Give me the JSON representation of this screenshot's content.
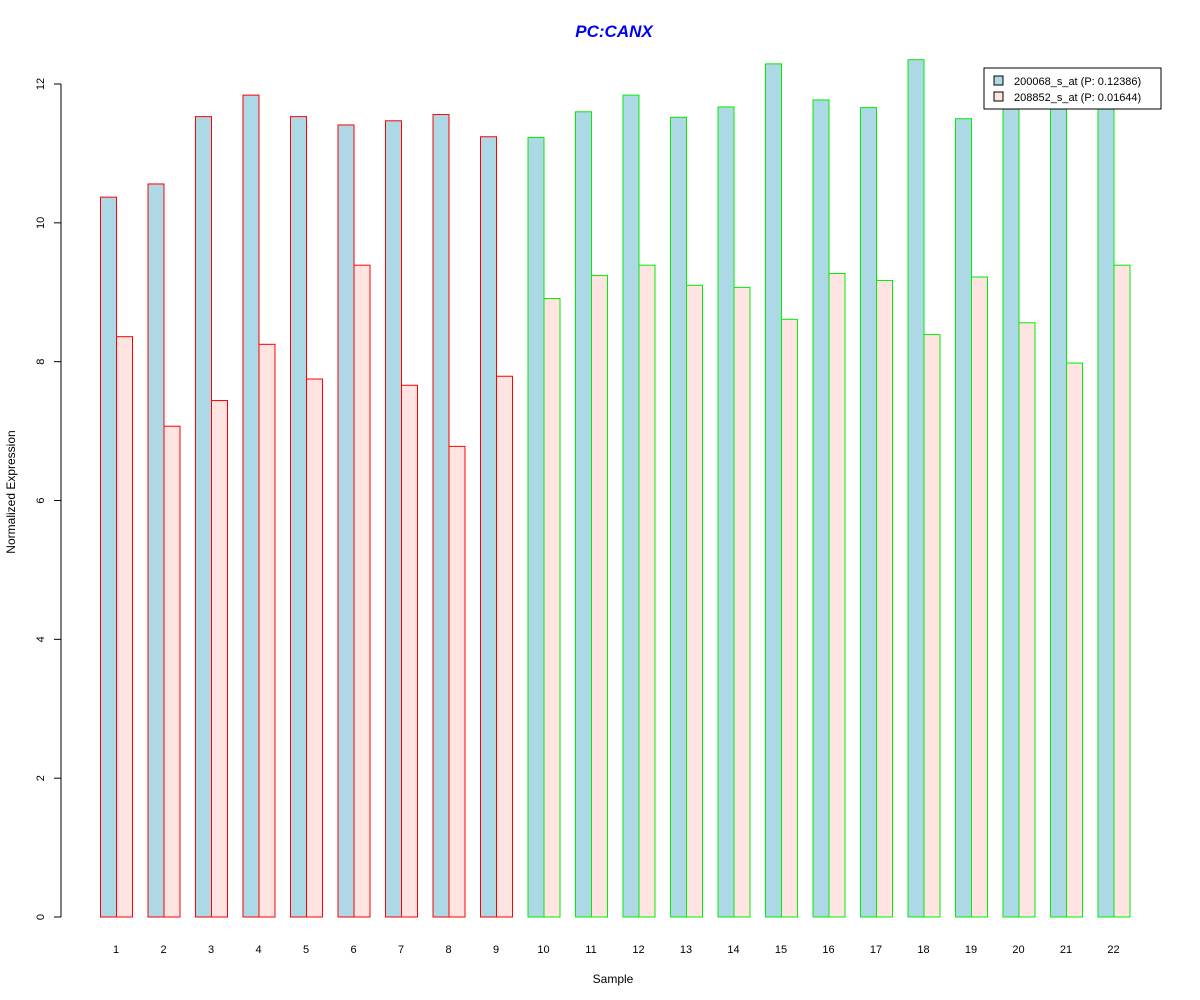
{
  "chart_data": {
    "type": "bar",
    "title": "PC:CANX",
    "xlabel": "Sample",
    "ylabel": "Normalized Expression",
    "categories": [
      "1",
      "2",
      "3",
      "4",
      "5",
      "6",
      "7",
      "8",
      "9",
      "10",
      "11",
      "12",
      "13",
      "14",
      "15",
      "16",
      "17",
      "18",
      "19",
      "20",
      "21",
      "22"
    ],
    "ylim": [
      0,
      12
    ],
    "yticks": [
      0,
      2,
      4,
      6,
      8,
      10,
      12
    ],
    "grid": false,
    "legend_position": "top-right",
    "series": [
      {
        "name": "200068_s_at (P: 0.12386)",
        "fill": "#add8e6",
        "values": [
          10.37,
          10.56,
          11.53,
          11.84,
          11.53,
          11.41,
          11.47,
          11.56,
          11.24,
          11.23,
          11.6,
          11.84,
          11.52,
          11.67,
          12.29,
          11.77,
          11.66,
          12.35,
          11.5,
          11.67,
          11.67,
          11.67
        ]
      },
      {
        "name": "208852_s_at (P: 0.01644)",
        "fill": "#ffe4e1",
        "values": [
          8.36,
          7.07,
          7.44,
          8.25,
          7.75,
          9.39,
          7.66,
          6.78,
          7.79,
          8.91,
          9.24,
          9.39,
          9.1,
          9.07,
          8.61,
          9.27,
          9.17,
          8.39,
          9.22,
          8.56,
          7.98,
          9.39
        ]
      }
    ],
    "group_border_colors": [
      "#ff0000",
      "#ff0000",
      "#ff0000",
      "#ff0000",
      "#ff0000",
      "#ff0000",
      "#ff0000",
      "#ff0000",
      "#ff0000",
      "#00ee00",
      "#00ee00",
      "#00ee00",
      "#00ee00",
      "#00ee00",
      "#00ee00",
      "#00ee00",
      "#00ee00",
      "#00ee00",
      "#00ee00",
      "#00ee00",
      "#00ee00",
      "#00ee00"
    ],
    "title_color": "#0000ee"
  }
}
